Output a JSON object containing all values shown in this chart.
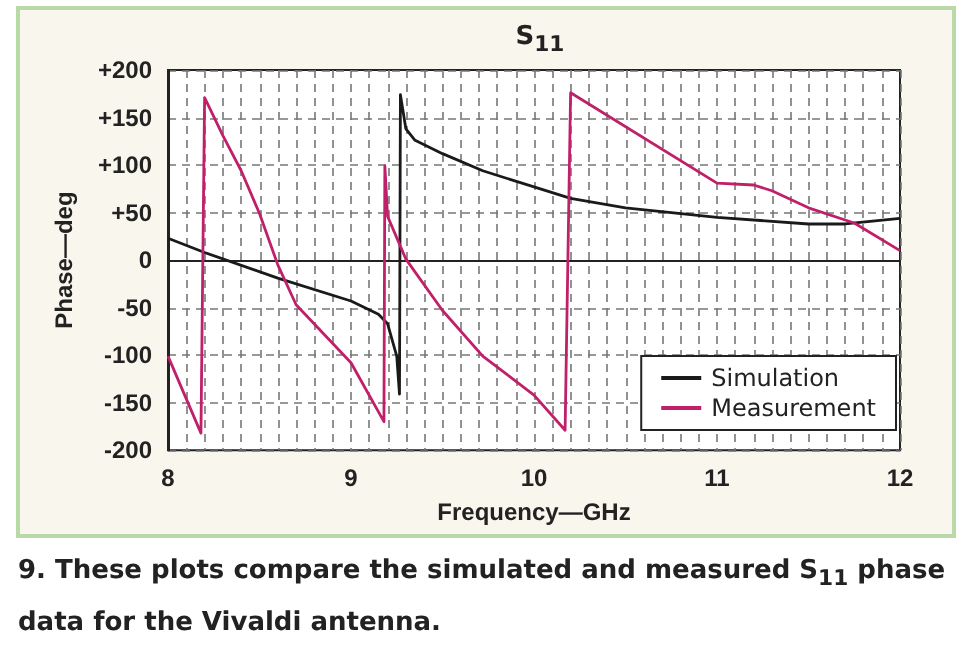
{
  "chart_data": {
    "type": "line",
    "title": "S$_{11}$",
    "xlabel": "Frequency—GHz",
    "ylabel": "Phase—deg",
    "annotations": [
      "9. These plots compare the simulated and measured S$_{11}$ phase data for the Vivaldi antenna."
    ],
    "series": [
      {
        "name": "Simulation",
        "color": "#1a1a1a",
        "x": [
          8,
          8.2,
          8.6,
          9,
          9.15,
          9.2,
          9.25,
          9.265,
          9.27,
          9.3,
          9.35,
          9.5,
          9.72,
          10,
          10.2,
          10.5,
          11,
          11.5,
          11.7,
          12
        ],
        "values": [
          23,
          8,
          -19,
          -43,
          -57,
          -67,
          -101,
          -141,
          174,
          138,
          126,
          112,
          94,
          77,
          65,
          55,
          45,
          38,
          38,
          44
        ]
      },
      {
        "name": "Measurement",
        "color": "#c0206a",
        "x": [
          8,
          8.18,
          8.2,
          8.3,
          8.4,
          8.5,
          8.6,
          8.7,
          9,
          9.18,
          9.185,
          9.2,
          9.3,
          9.5,
          9.72,
          10,
          10.17,
          10.2,
          11,
          11.2,
          11.3,
          11.5,
          11.75,
          12
        ],
        "values": [
          -101,
          -182,
          171,
          131,
          94,
          49,
          -5,
          -47,
          -108,
          -170,
          99,
          46,
          1,
          -53,
          -101,
          -142,
          -179,
          176,
          81,
          79,
          73,
          55,
          39,
          10
        ]
      }
    ],
    "xlim": [
      8,
      12
    ],
    "xticks": [
      8,
      {
        "value": 8.1,
        "label": null
      },
      {
        "value": 8.2,
        "label": null
      },
      {
        "value": 8.3,
        "label": null
      },
      {
        "value": 8.4,
        "label": null
      },
      {
        "value": 8.5,
        "label": null
      },
      {
        "value": 8.6,
        "label": null
      },
      {
        "value": 8.7,
        "label": null
      },
      {
        "value": 8.8,
        "label": null
      },
      {
        "value": 8.9,
        "label": null
      },
      9,
      {
        "value": 9.1,
        "label": null
      },
      {
        "value": 9.2,
        "label": null
      },
      {
        "value": 9.3,
        "label": null
      },
      {
        "value": 9.4,
        "label": null
      },
      {
        "value": 9.5,
        "label": null
      },
      {
        "value": 9.6,
        "label": null
      },
      {
        "value": 9.7,
        "label": null
      },
      {
        "value": 9.8,
        "label": null
      },
      {
        "value": 9.9,
        "label": null
      },
      10,
      {
        "value": 10.1,
        "label": null
      },
      {
        "value": 10.2,
        "label": null
      },
      {
        "value": 10.3,
        "label": null
      },
      {
        "value": 10.4,
        "label": null
      },
      {
        "value": 10.5,
        "label": null
      },
      {
        "value": 10.6,
        "label": null
      },
      {
        "value": 10.7,
        "label": null
      },
      {
        "value": 10.8,
        "label": null
      },
      {
        "value": 10.9,
        "label": null
      },
      11,
      {
        "value": 11.1,
        "label": null
      },
      {
        "value": 11.2,
        "label": null
      },
      {
        "value": 11.3,
        "label": null
      },
      {
        "value": 11.4,
        "label": null
      },
      {
        "value": 11.5,
        "label": null
      },
      {
        "value": 11.6,
        "label": null
      },
      {
        "value": 11.7,
        "label": null
      },
      {
        "value": 11.8,
        "label": null
      },
      {
        "value": 11.9,
        "label": null
      },
      12
    ],
    "ylim": [
      -200,
      200
    ],
    "yticks": [
      -200,
      -150,
      -100,
      -50,
      0,
      {
        "value": 50,
        "label": "+50"
      },
      {
        "value": 100,
        "label": "+100"
      },
      {
        "value": 150,
        "label": "+150"
      },
      {
        "value": 200,
        "label": "+200"
      }
    ],
    "grid": true,
    "legend": "bottom right",
    "marker": "none",
    "line_style": "solid"
  }
}
